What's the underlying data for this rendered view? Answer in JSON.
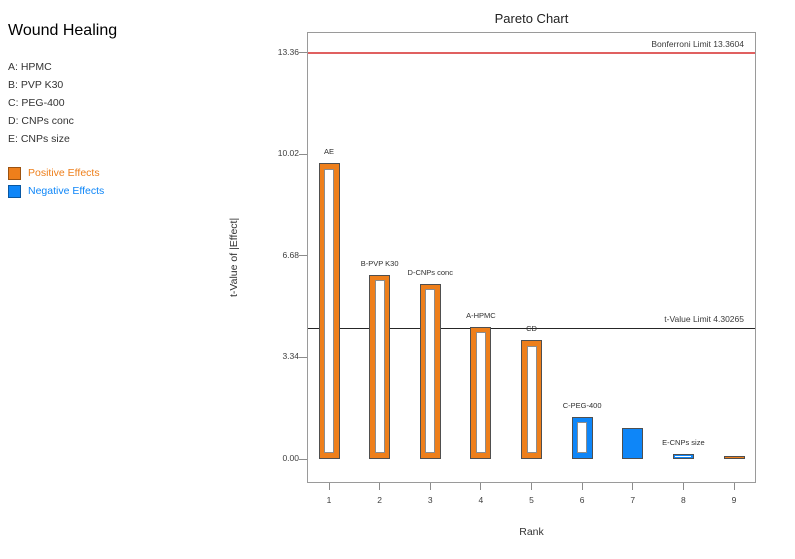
{
  "panel": {
    "title": "Wound Healing",
    "factors": [
      "A: HPMC",
      "B: PVP K30",
      "C: PEG-400",
      "D: CNPs conc",
      "E: CNPs size"
    ],
    "legend": [
      {
        "label": "Positive Effects",
        "key": "positive",
        "color": "#EE7F1B"
      },
      {
        "label": "Negative Effects",
        "key": "negative",
        "color": "#0E86F8"
      }
    ]
  },
  "chart_data": {
    "type": "bar",
    "title": "Pareto Chart",
    "xlabel": "Rank",
    "ylabel": "t-Value of |Effect|",
    "ylim": [
      -0.8,
      14.05
    ],
    "grid": false,
    "legend_position": "outside-left",
    "yticks": [
      {
        "value": 0,
        "label": "0.00"
      },
      {
        "value": 3.34,
        "label": "3.34"
      },
      {
        "value": 6.68,
        "label": "6.68"
      },
      {
        "value": 10.02,
        "label": "10.02"
      },
      {
        "value": 13.36,
        "label": "13.36"
      }
    ],
    "categories": [
      "1",
      "2",
      "3",
      "4",
      "5",
      "6",
      "7",
      "8",
      "9"
    ],
    "bars": [
      {
        "rank": 1,
        "label": "AE",
        "value": 9.73,
        "effect": "positive",
        "style": "hollow"
      },
      {
        "rank": 2,
        "label": "B-PVP K30",
        "value": 6.06,
        "effect": "positive",
        "style": "hollow"
      },
      {
        "rank": 3,
        "label": "D-CNPs conc",
        "value": 5.76,
        "effect": "positive",
        "style": "hollow"
      },
      {
        "rank": 4,
        "label": "A-HPMC",
        "value": 4.35,
        "effect": "positive",
        "style": "hollow"
      },
      {
        "rank": 5,
        "label": "CD",
        "value": 3.91,
        "effect": "positive",
        "style": "hollow"
      },
      {
        "rank": 6,
        "label": "C-PEG-400",
        "value": 1.39,
        "effect": "negative",
        "style": "hollow"
      },
      {
        "rank": 7,
        "label": "",
        "value": 1.02,
        "effect": "negative",
        "style": "solid"
      },
      {
        "rank": 8,
        "label": "E-CNPs size",
        "value": 0.18,
        "effect": "negative",
        "style": "hollow"
      },
      {
        "rank": 9,
        "label": "",
        "value": 0.1,
        "effect": "positive",
        "style": "solid"
      }
    ],
    "reference_lines": [
      {
        "label": "Bonferroni Limit 13.3604",
        "value": 13.3604,
        "color": "#E06060",
        "thickness": 1.6
      },
      {
        "label": "t-Value Limit 4.30265",
        "value": 4.30265,
        "color": "#262626",
        "thickness": 1.2
      }
    ],
    "colors": {
      "positive": "#EE7F1B",
      "negative": "#0E86F8"
    }
  }
}
